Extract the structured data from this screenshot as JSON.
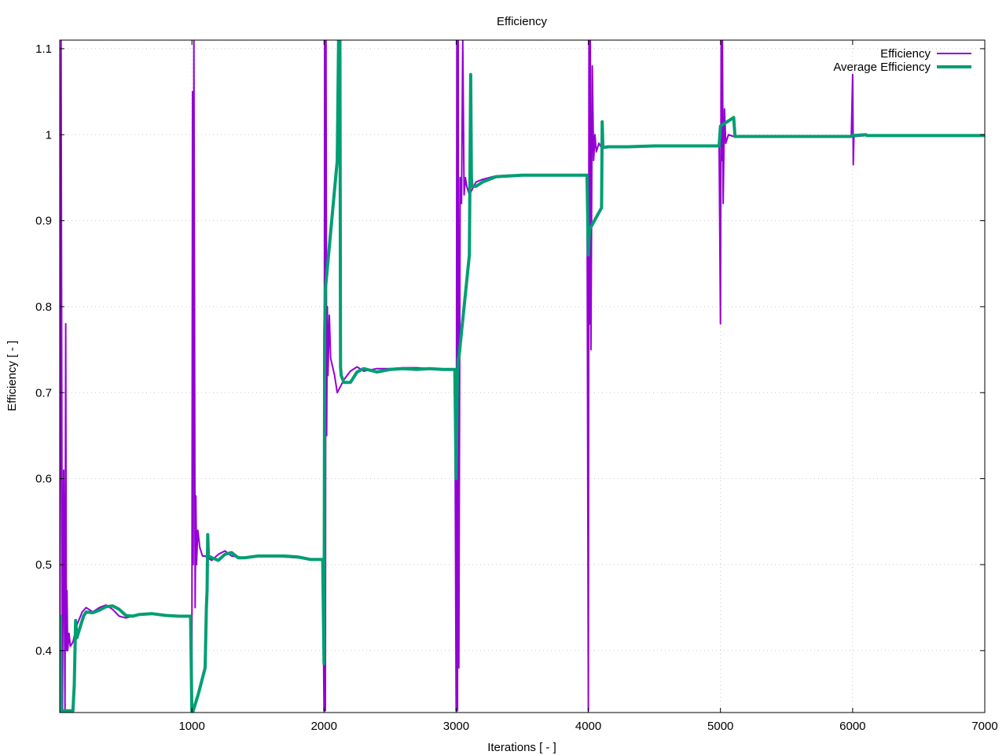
{
  "chart_data": {
    "type": "line",
    "title": "Efficiency",
    "xlabel": "Iterations [ - ]",
    "ylabel": "Efficiency [ - ]",
    "xlim": [
      0,
      7000
    ],
    "ylim": [
      0.328,
      1.11
    ],
    "x_ticks": [
      1000,
      2000,
      3000,
      4000,
      5000,
      6000,
      7000
    ],
    "x_tick_labels": [
      "1000",
      "2000",
      "3000",
      "4000",
      "5000",
      "6000",
      "7000"
    ],
    "y_ticks": [
      0.4,
      0.5,
      0.6,
      0.7,
      0.8,
      0.9,
      1.0,
      1.1
    ],
    "y_tick_labels": [
      "0.4",
      "0.5",
      "0.6",
      "0.7",
      "0.8",
      "0.9",
      "1",
      "1.1"
    ],
    "grid": true,
    "legend_position": "top-right",
    "series": [
      {
        "name": "Efficiency",
        "color": "#9400d3",
        "width": 2,
        "points": [
          [
            1,
            0.33
          ],
          [
            10,
            1.11
          ],
          [
            20,
            0.33
          ],
          [
            30,
            0.61
          ],
          [
            40,
            0.33
          ],
          [
            45,
            0.78
          ],
          [
            50,
            0.4
          ],
          [
            55,
            0.47
          ],
          [
            60,
            0.4
          ],
          [
            70,
            0.42
          ],
          [
            80,
            0.405
          ],
          [
            100,
            0.41
          ],
          [
            130,
            0.43
          ],
          [
            170,
            0.445
          ],
          [
            200,
            0.45
          ],
          [
            250,
            0.445
          ],
          [
            300,
            0.45
          ],
          [
            350,
            0.453
          ],
          [
            400,
            0.448
          ],
          [
            450,
            0.44
          ],
          [
            500,
            0.438
          ],
          [
            600,
            0.442
          ],
          [
            700,
            0.443
          ],
          [
            800,
            0.441
          ],
          [
            900,
            0.44
          ],
          [
            990,
            0.44
          ],
          [
            1000,
            0.33
          ],
          [
            1005,
            1.05
          ],
          [
            1010,
            0.5
          ],
          [
            1015,
            1.11
          ],
          [
            1020,
            0.8
          ],
          [
            1025,
            0.45
          ],
          [
            1030,
            0.58
          ],
          [
            1035,
            0.5
          ],
          [
            1045,
            0.54
          ],
          [
            1060,
            0.52
          ],
          [
            1080,
            0.51
          ],
          [
            1100,
            0.51
          ],
          [
            1150,
            0.505
          ],
          [
            1200,
            0.512
          ],
          [
            1250,
            0.516
          ],
          [
            1300,
            0.51
          ],
          [
            1400,
            0.508
          ],
          [
            1500,
            0.51
          ],
          [
            1600,
            0.51
          ],
          [
            1700,
            0.509
          ],
          [
            1800,
            0.508
          ],
          [
            1900,
            0.506
          ],
          [
            1990,
            0.506
          ],
          [
            2000,
            0.33
          ],
          [
            2005,
            1.11
          ],
          [
            2010,
            0.33
          ],
          [
            2015,
            1.11
          ],
          [
            2020,
            0.65
          ],
          [
            2025,
            0.8
          ],
          [
            2030,
            0.72
          ],
          [
            2040,
            0.79
          ],
          [
            2050,
            0.74
          ],
          [
            2080,
            0.72
          ],
          [
            2100,
            0.7
          ],
          [
            2150,
            0.715
          ],
          [
            2200,
            0.725
          ],
          [
            2250,
            0.73
          ],
          [
            2300,
            0.725
          ],
          [
            2400,
            0.728
          ],
          [
            2500,
            0.728
          ],
          [
            2600,
            0.729
          ],
          [
            2700,
            0.729
          ],
          [
            2800,
            0.728
          ],
          [
            2900,
            0.727
          ],
          [
            2990,
            0.727
          ],
          [
            3000,
            0.33
          ],
          [
            3005,
            1.11
          ],
          [
            3010,
            0.33
          ],
          [
            3015,
            1.11
          ],
          [
            3020,
            0.38
          ],
          [
            3030,
            0.95
          ],
          [
            3040,
            0.92
          ],
          [
            3050,
            1.11
          ],
          [
            3060,
            0.93
          ],
          [
            3070,
            0.95
          ],
          [
            3080,
            0.94
          ],
          [
            3100,
            0.93
          ],
          [
            3150,
            0.945
          ],
          [
            3200,
            0.948
          ],
          [
            3300,
            0.952
          ],
          [
            3400,
            0.953
          ],
          [
            3500,
            0.953
          ],
          [
            3600,
            0.953
          ],
          [
            3700,
            0.953
          ],
          [
            3800,
            0.953
          ],
          [
            3900,
            0.953
          ],
          [
            3990,
            0.953
          ],
          [
            4000,
            0.33
          ],
          [
            4005,
            1.11
          ],
          [
            4010,
            0.78
          ],
          [
            4015,
            1.11
          ],
          [
            4020,
            0.75
          ],
          [
            4030,
            1.08
          ],
          [
            4040,
            0.97
          ],
          [
            4050,
            1.0
          ],
          [
            4060,
            0.98
          ],
          [
            4080,
            0.99
          ],
          [
            4100,
            0.985
          ],
          [
            4200,
            0.986
          ],
          [
            4500,
            0.987
          ],
          [
            4800,
            0.987
          ],
          [
            4990,
            0.987
          ],
          [
            5000,
            0.78
          ],
          [
            5005,
            1.11
          ],
          [
            5010,
            0.97
          ],
          [
            5015,
            1.11
          ],
          [
            5020,
            0.92
          ],
          [
            5030,
            1.03
          ],
          [
            5040,
            0.99
          ],
          [
            5060,
            1.0
          ],
          [
            5100,
            0.998
          ],
          [
            5200,
            0.998
          ],
          [
            5500,
            0.998
          ],
          [
            5800,
            0.998
          ],
          [
            5990,
            0.998
          ],
          [
            6000,
            1.07
          ],
          [
            6005,
            0.965
          ],
          [
            6010,
            1.0
          ],
          [
            6020,
            0.998
          ],
          [
            6100,
            0.999
          ],
          [
            6500,
            0.999
          ],
          [
            7000,
            0.999
          ]
        ]
      },
      {
        "name": "Average Efficiency",
        "color": "#009e73",
        "width": 4,
        "points": [
          [
            0,
            0.33
          ],
          [
            5,
            0.44
          ],
          [
            10,
            0.33
          ],
          [
            50,
            0.33
          ],
          [
            100,
            0.33
          ],
          [
            110,
            0.36
          ],
          [
            120,
            0.435
          ],
          [
            130,
            0.415
          ],
          [
            150,
            0.425
          ],
          [
            180,
            0.44
          ],
          [
            200,
            0.445
          ],
          [
            250,
            0.444
          ],
          [
            300,
            0.447
          ],
          [
            350,
            0.451
          ],
          [
            400,
            0.452
          ],
          [
            450,
            0.448
          ],
          [
            500,
            0.441
          ],
          [
            550,
            0.44
          ],
          [
            600,
            0.442
          ],
          [
            700,
            0.443
          ],
          [
            800,
            0.441
          ],
          [
            900,
            0.44
          ],
          [
            990,
            0.44
          ],
          [
            1000,
            0.33
          ],
          [
            1010,
            0.33
          ],
          [
            1050,
            0.35
          ],
          [
            1100,
            0.38
          ],
          [
            1110,
            0.45
          ],
          [
            1115,
            0.47
          ],
          [
            1120,
            0.535
          ],
          [
            1125,
            0.51
          ],
          [
            1150,
            0.508
          ],
          [
            1200,
            0.505
          ],
          [
            1250,
            0.512
          ],
          [
            1300,
            0.514
          ],
          [
            1350,
            0.508
          ],
          [
            1400,
            0.508
          ],
          [
            1500,
            0.51
          ],
          [
            1600,
            0.51
          ],
          [
            1700,
            0.51
          ],
          [
            1800,
            0.509
          ],
          [
            1900,
            0.506
          ],
          [
            1990,
            0.506
          ],
          [
            2000,
            0.385
          ],
          [
            2005,
            0.77
          ],
          [
            2010,
            0.82
          ],
          [
            2100,
            0.97
          ],
          [
            2110,
            1.11
          ],
          [
            2120,
            1.11
          ],
          [
            2125,
            0.73
          ],
          [
            2130,
            0.72
          ],
          [
            2150,
            0.712
          ],
          [
            2200,
            0.712
          ],
          [
            2250,
            0.724
          ],
          [
            2300,
            0.728
          ],
          [
            2350,
            0.726
          ],
          [
            2400,
            0.724
          ],
          [
            2500,
            0.727
          ],
          [
            2600,
            0.728
          ],
          [
            2700,
            0.727
          ],
          [
            2800,
            0.728
          ],
          [
            2900,
            0.727
          ],
          [
            2990,
            0.727
          ],
          [
            3000,
            0.6
          ],
          [
            3010,
            0.72
          ],
          [
            3015,
            0.74
          ],
          [
            3020,
            0.74
          ],
          [
            3100,
            0.86
          ],
          [
            3110,
            1.07
          ],
          [
            3115,
            0.95
          ],
          [
            3120,
            0.94
          ],
          [
            3150,
            0.94
          ],
          [
            3200,
            0.945
          ],
          [
            3300,
            0.951
          ],
          [
            3400,
            0.952
          ],
          [
            3500,
            0.953
          ],
          [
            3600,
            0.953
          ],
          [
            3700,
            0.953
          ],
          [
            3800,
            0.953
          ],
          [
            3900,
            0.953
          ],
          [
            3990,
            0.953
          ],
          [
            4000,
            0.86
          ],
          [
            4005,
            0.88
          ],
          [
            4010,
            0.89
          ],
          [
            4100,
            0.915
          ],
          [
            4105,
            1.015
          ],
          [
            4110,
            0.985
          ],
          [
            4150,
            0.986
          ],
          [
            4200,
            0.986
          ],
          [
            4300,
            0.986
          ],
          [
            4500,
            0.987
          ],
          [
            4800,
            0.987
          ],
          [
            4990,
            0.987
          ],
          [
            5000,
            1.01
          ],
          [
            5100,
            1.02
          ],
          [
            5110,
            0.998
          ],
          [
            5200,
            0.998
          ],
          [
            5500,
            0.998
          ],
          [
            5800,
            0.998
          ],
          [
            5990,
            0.998
          ],
          [
            6000,
            0.999
          ],
          [
            6100,
            1.0
          ],
          [
            6110,
            0.999
          ],
          [
            6500,
            0.999
          ],
          [
            7000,
            0.999
          ]
        ]
      }
    ]
  }
}
